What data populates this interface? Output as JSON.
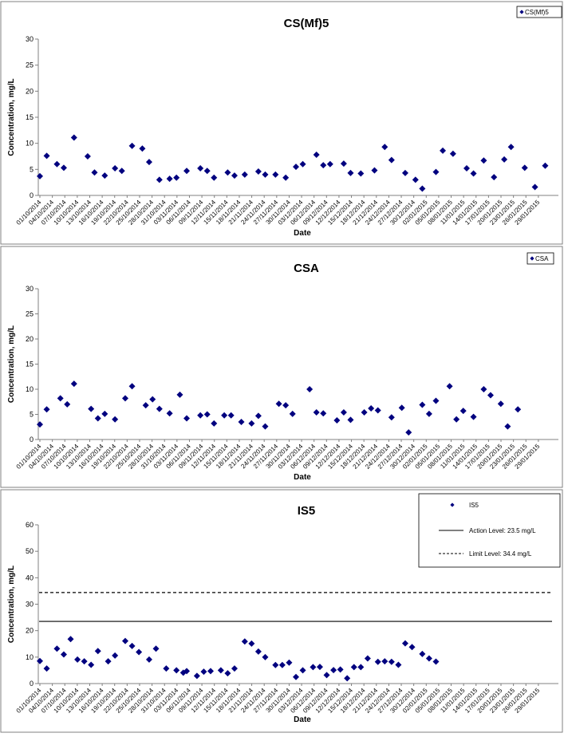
{
  "dates": [
    "01/10/2014",
    "04/10/2014",
    "07/10/2014",
    "10/10/2014",
    "13/10/2014",
    "16/10/2014",
    "19/10/2014",
    "22/10/2014",
    "25/10/2014",
    "28/10/2014",
    "31/10/2014",
    "03/11/2014",
    "06/11/2014",
    "09/11/2014",
    "12/11/2014",
    "15/11/2014",
    "18/11/2014",
    "21/11/2014",
    "24/11/2014",
    "27/11/2014",
    "30/11/2014",
    "03/12/2014",
    "06/12/2014",
    "09/12/2014",
    "12/12/2014",
    "15/12/2014",
    "18/12/2014",
    "21/12/2014",
    "24/12/2014",
    "27/12/2014",
    "30/12/2014",
    "02/01/2015",
    "05/01/2015",
    "08/01/2015",
    "11/01/2015",
    "14/01/2015",
    "17/01/2015",
    "20/01/2015",
    "23/01/2015",
    "26/01/2015",
    "29/01/2015"
  ],
  "colors": {
    "marker": "#00007f",
    "axis": "#808080",
    "frame": "#808080"
  },
  "chart_data": [
    {
      "type": "scatter",
      "title": "CS(Mf)5",
      "xlabel": "Date",
      "ylabel": "Concentration, mg/L",
      "ylim": [
        0,
        30
      ],
      "yticks": [
        0,
        5,
        10,
        15,
        20,
        25,
        30
      ],
      "grid": false,
      "legend_position": "top-right",
      "series": [
        {
          "name": "CS(Mf)5",
          "marker": "diamond",
          "points": [
            [
              0,
              3.7
            ],
            [
              2,
              7.6
            ],
            [
              5,
              6
            ],
            [
              7,
              5.3
            ],
            [
              10,
              11.1
            ],
            [
              14,
              7.5
            ],
            [
              16,
              4.4
            ],
            [
              19,
              3.8
            ],
            [
              22,
              5.2
            ],
            [
              24,
              4.7
            ],
            [
              27,
              9.5
            ],
            [
              30,
              9
            ],
            [
              32,
              6.4
            ],
            [
              35,
              3
            ],
            [
              38,
              3.2
            ],
            [
              40,
              3.4
            ],
            [
              43,
              4.7
            ],
            [
              47,
              5.2
            ],
            [
              49,
              4.7
            ],
            [
              51,
              3.4
            ],
            [
              55,
              4.4
            ],
            [
              57,
              3.8
            ],
            [
              60,
              4
            ],
            [
              64,
              4.6
            ],
            [
              66,
              4
            ],
            [
              69,
              4
            ],
            [
              72,
              3.4
            ],
            [
              75,
              5.5
            ],
            [
              77,
              6
            ],
            [
              81,
              7.8
            ],
            [
              83,
              5.8
            ],
            [
              85,
              6
            ],
            [
              89,
              6.1
            ],
            [
              91,
              4.3
            ],
            [
              94,
              4.2
            ],
            [
              98,
              4.8
            ],
            [
              101,
              9.3
            ],
            [
              103,
              6.8
            ],
            [
              107,
              4.3
            ],
            [
              110,
              3
            ],
            [
              112,
              1.3
            ],
            [
              116,
              4.5
            ],
            [
              118,
              8.6
            ],
            [
              121,
              8
            ],
            [
              125,
              5.2
            ],
            [
              127,
              4.2
            ],
            [
              130,
              6.7
            ],
            [
              133,
              3.5
            ],
            [
              136,
              6.9
            ],
            [
              138,
              9.3
            ],
            [
              142,
              5.3
            ],
            [
              145,
              1.6
            ],
            [
              148,
              5.7
            ]
          ]
        }
      ]
    },
    {
      "type": "scatter",
      "title": "CSA",
      "xlabel": "Date",
      "ylabel": "Concentration, mg/L",
      "ylim": [
        0,
        30
      ],
      "yticks": [
        0,
        5,
        10,
        15,
        20,
        25,
        30
      ],
      "grid": false,
      "legend_position": "top-right",
      "series": [
        {
          "name": "CSA",
          "marker": "diamond",
          "points": [
            [
              0,
              3
            ],
            [
              2,
              6
            ],
            [
              6,
              8.2
            ],
            [
              8,
              7
            ],
            [
              10,
              11.1
            ],
            [
              15,
              6.1
            ],
            [
              17,
              4.2
            ],
            [
              19,
              5.1
            ],
            [
              22,
              4
            ],
            [
              25,
              8.2
            ],
            [
              27,
              10.6
            ],
            [
              31,
              6.8
            ],
            [
              33,
              8
            ],
            [
              35,
              6.1
            ],
            [
              38,
              5.2
            ],
            [
              41,
              8.9
            ],
            [
              43,
              4.2
            ],
            [
              47,
              4.8
            ],
            [
              49,
              5
            ],
            [
              51,
              3.2
            ],
            [
              54,
              4.8
            ],
            [
              56,
              4.8
            ],
            [
              59,
              3.5
            ],
            [
              62,
              3.2
            ],
            [
              64,
              4.7
            ],
            [
              66,
              2.6
            ],
            [
              70,
              7.1
            ],
            [
              72,
              6.8
            ],
            [
              74,
              5.1
            ],
            [
              79,
              10
            ],
            [
              81,
              5.4
            ],
            [
              83,
              5.2
            ],
            [
              87,
              3.8
            ],
            [
              89,
              5.4
            ],
            [
              91,
              3.9
            ],
            [
              95,
              5.4
            ],
            [
              97,
              6.2
            ],
            [
              99,
              5.8
            ],
            [
              103,
              4.4
            ],
            [
              106,
              6.3
            ],
            [
              108,
              1.4
            ],
            [
              112,
              6.9
            ],
            [
              114,
              5.1
            ],
            [
              116,
              7.7
            ],
            [
              120,
              10.6
            ],
            [
              122,
              4
            ],
            [
              124,
              5.7
            ],
            [
              127,
              4.5
            ],
            [
              130,
              10
            ],
            [
              132,
              8.8
            ],
            [
              135,
              7.1
            ],
            [
              137,
              2.6
            ],
            [
              140,
              6
            ]
          ]
        }
      ]
    },
    {
      "type": "scatter",
      "title": "IS5",
      "xlabel": "Date",
      "ylabel": "Concentration, mg/L",
      "ylim": [
        0,
        60
      ],
      "yticks": [
        0,
        10,
        20,
        30,
        40,
        50,
        60
      ],
      "grid": false,
      "legend_position": "top-right",
      "series": [
        {
          "name": "IS5",
          "marker": "diamond",
          "points": [
            [
              0,
              8.5
            ],
            [
              2,
              5.7
            ],
            [
              5,
              13.2
            ],
            [
              7,
              11
            ],
            [
              9,
              16.8
            ],
            [
              11,
              9.1
            ],
            [
              13,
              8.4
            ],
            [
              15,
              7.1
            ],
            [
              17,
              12.3
            ],
            [
              20,
              8.4
            ],
            [
              22,
              10.6
            ],
            [
              25,
              16.1
            ],
            [
              27,
              14.2
            ],
            [
              29,
              11.9
            ],
            [
              32,
              9.1
            ],
            [
              34,
              13.2
            ],
            [
              37,
              5.7
            ],
            [
              40,
              5
            ],
            [
              42,
              4.1
            ],
            [
              43,
              4.7
            ],
            [
              46,
              2.9
            ],
            [
              48,
              4.5
            ],
            [
              50,
              4.7
            ],
            [
              53,
              5
            ],
            [
              55,
              3.9
            ],
            [
              57,
              5.7
            ],
            [
              60,
              15.9
            ],
            [
              62,
              15.1
            ],
            [
              64,
              12.1
            ],
            [
              66,
              10
            ],
            [
              69,
              7
            ],
            [
              71,
              7
            ],
            [
              73,
              7.9
            ],
            [
              75,
              2.5
            ],
            [
              77,
              5
            ],
            [
              80,
              6.2
            ],
            [
              82,
              6.3
            ],
            [
              84,
              3.2
            ],
            [
              86,
              5.1
            ],
            [
              88,
              5.3
            ],
            [
              90,
              2
            ],
            [
              92,
              6.2
            ],
            [
              94,
              6.2
            ],
            [
              96,
              9.5
            ],
            [
              99,
              8.2
            ],
            [
              101,
              8.4
            ],
            [
              103,
              8.2
            ],
            [
              105,
              7.1
            ],
            [
              107,
              15.2
            ],
            [
              109,
              13.8
            ],
            [
              112,
              11.2
            ],
            [
              114,
              9.5
            ],
            [
              116,
              8.3
            ]
          ]
        }
      ],
      "reference_lines": [
        {
          "label": "Action Level: 23.5 mg/L",
          "value": 23.5,
          "style": "solid"
        },
        {
          "label": "Limit Level: 34.4 mg/L",
          "value": 34.4,
          "style": "dashed"
        }
      ]
    }
  ]
}
